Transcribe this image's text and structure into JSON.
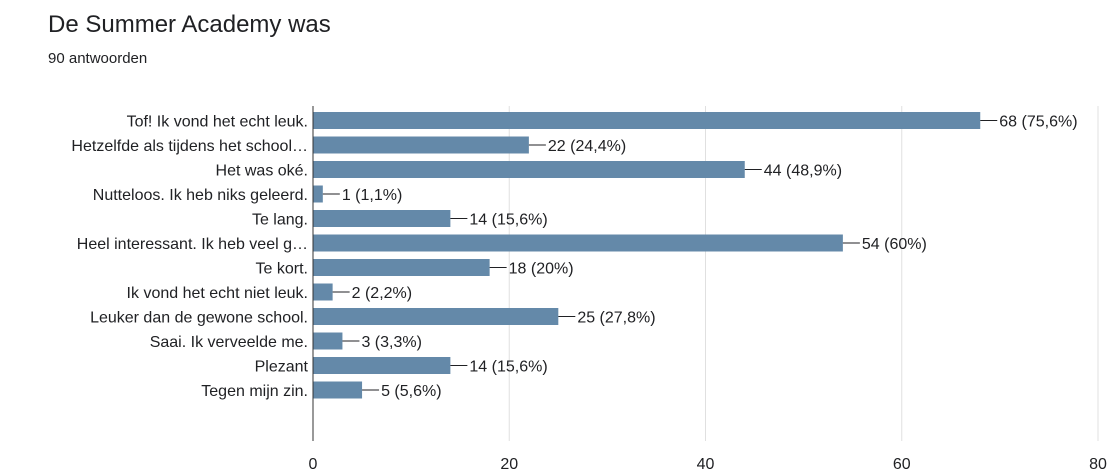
{
  "header": {
    "title": "De Summer Academy was",
    "response_count": "90 antwoorden"
  },
  "chart_data": {
    "type": "bar",
    "orientation": "horizontal",
    "categories": [
      "Tof! Ik vond het echt leuk.",
      "Hetzelfde als tijdens het school…",
      "Het was oké.",
      "Nutteloos. Ik heb niks geleerd.",
      "Te lang.",
      "Heel interessant. Ik heb veel g…",
      "Te kort.",
      "Ik vond het echt niet leuk.",
      "Leuker dan de gewone school.",
      "Saai. Ik verveelde me.",
      "Plezant",
      "Tegen mijn zin."
    ],
    "values": [
      68,
      22,
      44,
      1,
      14,
      54,
      18,
      2,
      25,
      3,
      14,
      5
    ],
    "value_labels": [
      "68 (75,6%)",
      "22 (24,4%)",
      "44 (48,9%)",
      "1 (1,1%)",
      "14 (15,6%)",
      "54 (60%)",
      "18 (20%)",
      "2 (2,2%)",
      "25 (27,8%)",
      "3 (3,3%)",
      "14 (15,6%)",
      "5 (5,6%)"
    ],
    "x_ticks": [
      0,
      20,
      40,
      60,
      80
    ],
    "xlim": [
      0,
      80
    ],
    "grid": true,
    "bar_color": "#6489a9",
    "grid_color": "#e0e0e0"
  }
}
